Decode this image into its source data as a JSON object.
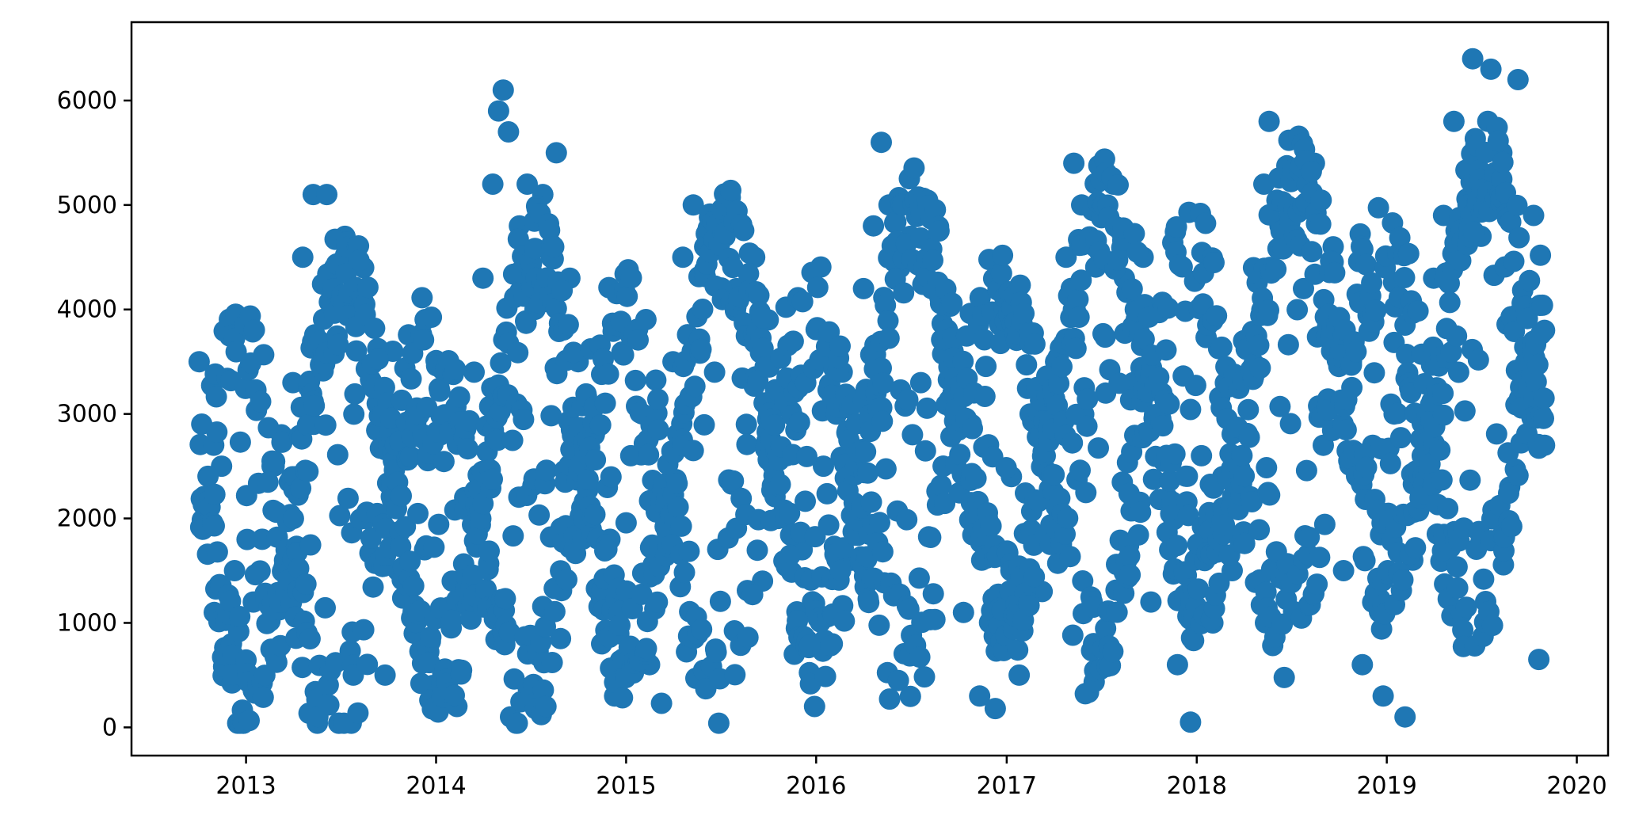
{
  "chart_data": {
    "type": "scatter",
    "title": "",
    "xlabel": "",
    "ylabel": "",
    "xlim": [
      "2012-05-26",
      "2020-03-01"
    ],
    "ylim": [
      -270,
      6750
    ],
    "x_ticks": [
      "2013",
      "2014",
      "2015",
      "2016",
      "2017",
      "2018",
      "2019",
      "2020"
    ],
    "y_ticks": [
      "0",
      "1000",
      "2000",
      "3000",
      "4000",
      "5000",
      "6000"
    ],
    "grid": false,
    "legend": "none",
    "marker_color": "#1f77b4",
    "marker": "filled-circle",
    "date_range": [
      "2012-10-03",
      "2019-10-31"
    ],
    "seasonal_points": [
      [
        "2012-10-03",
        3500
      ],
      [
        "2012-10-15",
        2200
      ],
      [
        "2012-11-01",
        1100
      ],
      [
        "2012-11-15",
        2500
      ],
      [
        "2012-12-01",
        600
      ],
      [
        "2012-12-10",
        1500
      ],
      [
        "2012-12-28",
        100
      ],
      [
        "2013-01-15",
        1200
      ],
      [
        "2013-02-01",
        1800
      ],
      [
        "2013-02-20",
        2500
      ],
      [
        "2013-03-10",
        2800
      ],
      [
        "2013-04-01",
        3300
      ],
      [
        "2013-04-20",
        4500
      ],
      [
        "2013-05-10",
        5100
      ],
      [
        "2013-06-05",
        5100
      ],
      [
        "2013-06-20",
        4400
      ],
      [
        "2013-07-10",
        4700
      ],
      [
        "2013-07-30",
        4100
      ],
      [
        "2013-08-15",
        4400
      ],
      [
        "2013-08-20",
        2000
      ],
      [
        "2013-09-10",
        3100
      ],
      [
        "2013-09-25",
        500
      ],
      [
        "2013-10-10",
        3600
      ],
      [
        "2013-10-20",
        1500
      ],
      [
        "2013-11-05",
        2600
      ],
      [
        "2013-11-20",
        900
      ],
      [
        "2013-12-10",
        1700
      ],
      [
        "2013-12-25",
        400
      ],
      [
        "2014-01-10",
        2800
      ],
      [
        "2014-02-01",
        1400
      ],
      [
        "2014-02-10",
        200
      ],
      [
        "2014-02-25",
        2200
      ],
      [
        "2014-03-15",
        3400
      ],
      [
        "2014-04-01",
        4300
      ],
      [
        "2014-04-20",
        5200
      ],
      [
        "2014-05-01",
        5900
      ],
      [
        "2014-05-10",
        6100
      ],
      [
        "2014-05-20",
        5700
      ],
      [
        "2014-06-10",
        4800
      ],
      [
        "2014-06-25",
        5200
      ],
      [
        "2014-07-10",
        4000
      ],
      [
        "2014-07-25",
        5100
      ],
      [
        "2014-08-10",
        4500
      ],
      [
        "2014-08-20",
        5500
      ],
      [
        "2014-08-28",
        850
      ],
      [
        "2014-09-15",
        4300
      ],
      [
        "2014-10-01",
        3500
      ],
      [
        "2014-10-20",
        1900
      ],
      [
        "2014-11-01",
        2800
      ],
      [
        "2014-11-15",
        800
      ],
      [
        "2014-12-01",
        1800
      ],
      [
        "2014-12-10",
        300
      ],
      [
        "2015-01-10",
        2600
      ],
      [
        "2015-02-01",
        3000
      ],
      [
        "2015-02-15",
        600
      ],
      [
        "2015-03-01",
        2200
      ],
      [
        "2015-03-10",
        230
      ],
      [
        "2015-04-01",
        3500
      ],
      [
        "2015-04-20",
        4500
      ],
      [
        "2015-05-10",
        5000
      ],
      [
        "2015-06-01",
        4600
      ],
      [
        "2015-06-20",
        3400
      ],
      [
        "2015-07-10",
        4700
      ],
      [
        "2015-08-01",
        4200
      ],
      [
        "2015-08-20",
        2900
      ],
      [
        "2015-09-05",
        4500
      ],
      [
        "2015-09-20",
        1400
      ],
      [
        "2015-10-01",
        3900
      ],
      [
        "2015-10-20",
        2000
      ],
      [
        "2015-11-05",
        2600
      ],
      [
        "2015-11-20",
        700
      ],
      [
        "2015-12-05",
        1700
      ],
      [
        "2015-12-29",
        200
      ],
      [
        "2016-01-15",
        2500
      ],
      [
        "2016-02-01",
        800
      ],
      [
        "2016-02-20",
        3400
      ],
      [
        "2016-03-10",
        1600
      ],
      [
        "2016-04-01",
        4200
      ],
      [
        "2016-04-20",
        4800
      ],
      [
        "2016-05-05",
        5600
      ],
      [
        "2016-05-20",
        5000
      ],
      [
        "2016-06-10",
        4400
      ],
      [
        "2016-06-30",
        4700
      ],
      [
        "2016-07-20",
        3300
      ],
      [
        "2016-08-10",
        4200
      ],
      [
        "2016-09-01",
        2500
      ],
      [
        "2016-09-20",
        3600
      ],
      [
        "2016-10-10",
        1100
      ],
      [
        "2016-10-25",
        2900
      ],
      [
        "2016-11-10",
        300
      ],
      [
        "2016-11-25",
        2000
      ],
      [
        "2016-12-10",
        180
      ],
      [
        "2017-01-10",
        2400
      ],
      [
        "2017-01-25",
        500
      ],
      [
        "2017-02-15",
        3000
      ],
      [
        "2017-03-10",
        1300
      ],
      [
        "2017-04-05",
        3500
      ],
      [
        "2017-04-25",
        4500
      ],
      [
        "2017-05-10",
        5400
      ],
      [
        "2017-05-25",
        5000
      ],
      [
        "2017-06-20",
        4600
      ],
      [
        "2017-07-10",
        3200
      ],
      [
        "2017-07-25",
        5200
      ],
      [
        "2017-08-15",
        4300
      ],
      [
        "2017-09-01",
        3300
      ],
      [
        "2017-09-20",
        4500
      ],
      [
        "2017-10-05",
        1200
      ],
      [
        "2017-10-20",
        3000
      ],
      [
        "2017-11-10",
        1700
      ],
      [
        "2017-11-25",
        600
      ],
      [
        "2017-12-20",
        50
      ],
      [
        "2018-01-10",
        2600
      ],
      [
        "2018-02-01",
        1000
      ],
      [
        "2018-02-20",
        2400
      ],
      [
        "2018-03-10",
        1500
      ],
      [
        "2018-04-01",
        3700
      ],
      [
        "2018-04-20",
        4400
      ],
      [
        "2018-05-10",
        5200
      ],
      [
        "2018-05-20",
        5800
      ],
      [
        "2018-06-10",
        4800
      ],
      [
        "2018-07-05",
        5300
      ],
      [
        "2018-07-25",
        4200
      ],
      [
        "2018-08-15",
        5400
      ],
      [
        "2018-09-01",
        2700
      ],
      [
        "2018-09-20",
        4600
      ],
      [
        "2018-10-10",
        1500
      ],
      [
        "2018-10-25",
        3500
      ],
      [
        "2018-11-15",
        600
      ],
      [
        "2018-12-05",
        2700
      ],
      [
        "2018-12-25",
        300
      ],
      [
        "2019-01-15",
        3000
      ],
      [
        "2019-02-05",
        100
      ],
      [
        "2019-02-20",
        1600
      ],
      [
        "2019-03-10",
        2600
      ],
      [
        "2019-04-01",
        4300
      ],
      [
        "2019-04-20",
        4900
      ],
      [
        "2019-05-10",
        5800
      ],
      [
        "2019-06-15",
        6400
      ],
      [
        "2019-07-01",
        4700
      ],
      [
        "2019-07-20",
        6300
      ],
      [
        "2019-08-10",
        5500
      ],
      [
        "2019-08-25",
        2300
      ],
      [
        "2019-09-10",
        6200
      ],
      [
        "2019-09-25",
        3500
      ],
      [
        "2019-10-10",
        4900
      ],
      [
        "2019-10-20",
        650
      ],
      [
        "2019-10-31",
        3800
      ]
    ]
  }
}
